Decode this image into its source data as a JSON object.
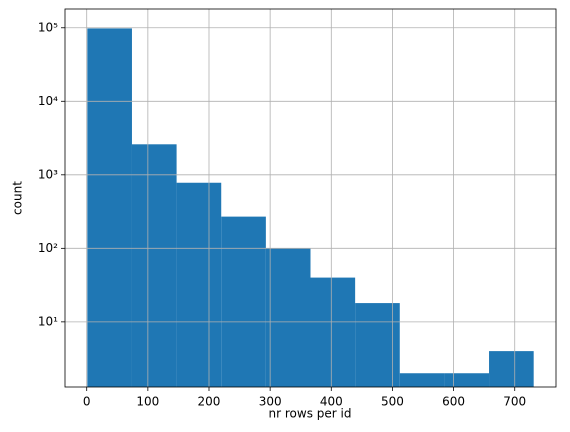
{
  "chart_data": {
    "type": "histogram",
    "xlabel": "nr rows per id",
    "ylabel": "count",
    "bins": [
      1,
      74,
      147,
      220,
      293,
      366,
      439,
      512,
      585,
      658,
      731
    ],
    "values": [
      98000,
      2600,
      780,
      270,
      100,
      40,
      18,
      2,
      2,
      4
    ],
    "color": "#1f77b4",
    "xlim": [
      -35.5,
      767.5
    ],
    "xticks": [
      0,
      100,
      200,
      300,
      400,
      500,
      600,
      700
    ],
    "ylim": [
      1.3,
      180000
    ],
    "ylog": true,
    "yticks": [
      {
        "value": 10,
        "label": "10¹"
      },
      {
        "value": 100,
        "label": "10²"
      },
      {
        "value": 1000,
        "label": "10³"
      },
      {
        "value": 10000,
        "label": "10⁴"
      },
      {
        "value": 100000,
        "label": "10⁵"
      }
    ],
    "grid": true
  }
}
